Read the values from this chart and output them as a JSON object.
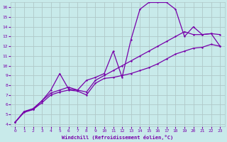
{
  "xlabel": "Windchill (Refroidissement éolien,°C)",
  "bg_color": "#c8eaea",
  "grid_color": "#b0c8c8",
  "line_color": "#7700aa",
  "xlim": [
    -0.5,
    23.5
  ],
  "ylim": [
    3.8,
    16.5
  ],
  "xticks": [
    0,
    1,
    2,
    3,
    4,
    5,
    6,
    7,
    8,
    9,
    10,
    11,
    12,
    13,
    14,
    15,
    16,
    17,
    18,
    19,
    20,
    21,
    22,
    23
  ],
  "yticks": [
    4,
    5,
    6,
    7,
    8,
    9,
    10,
    11,
    12,
    13,
    14,
    15,
    16
  ],
  "line1_x": [
    0,
    1,
    2,
    3,
    4,
    5,
    6,
    7,
    8,
    9,
    10,
    11,
    12,
    13,
    14,
    15,
    16,
    17,
    18,
    19,
    20,
    21,
    22,
    23
  ],
  "line1_y": [
    4.2,
    5.3,
    5.6,
    6.4,
    7.5,
    9.2,
    7.6,
    7.5,
    8.5,
    8.8,
    9.2,
    11.5,
    8.8,
    12.7,
    15.8,
    16.5,
    16.5,
    16.5,
    15.8,
    13.0,
    14.0,
    13.2,
    13.3,
    13.2
  ],
  "line2_x": [
    0,
    1,
    2,
    3,
    4,
    5,
    6,
    7,
    8,
    9,
    10,
    11,
    12,
    13,
    14,
    15,
    16,
    17,
    18,
    19,
    20,
    21,
    22,
    23
  ],
  "line2_y": [
    4.2,
    5.3,
    5.5,
    6.4,
    7.2,
    7.5,
    7.8,
    7.5,
    7.3,
    8.5,
    9.0,
    9.5,
    10.0,
    10.5,
    11.0,
    11.5,
    12.0,
    12.5,
    13.0,
    13.5,
    13.2,
    13.2,
    13.3,
    12.0
  ],
  "line3_x": [
    0,
    1,
    2,
    3,
    4,
    5,
    6,
    7,
    8,
    9,
    10,
    11,
    12,
    13,
    14,
    15,
    16,
    17,
    18,
    19,
    20,
    21,
    22,
    23
  ],
  "line3_y": [
    4.2,
    5.2,
    5.5,
    6.2,
    7.0,
    7.3,
    7.5,
    7.4,
    7.0,
    8.2,
    8.7,
    8.8,
    9.0,
    9.2,
    9.5,
    9.8,
    10.2,
    10.7,
    11.2,
    11.5,
    11.8,
    11.9,
    12.2,
    12.0
  ]
}
